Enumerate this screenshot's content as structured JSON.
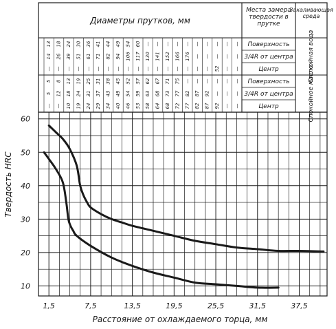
{
  "chart_data": {
    "type": "line",
    "title": "",
    "xlabel": "Расстояние от охлаждаемого торца, мм",
    "ylabel": "Твердость HRC",
    "xlim": [
      0,
      41.5
    ],
    "ylim": [
      7,
      62
    ],
    "x_ticks": [
      "1,5",
      "7,5",
      "13,5",
      "19,5",
      "25,5",
      "31,5",
      "37,5"
    ],
    "y_ticks": [
      "10",
      "20",
      "30",
      "40",
      "50",
      "60"
    ],
    "grid": true,
    "series": [
      {
        "x": [
          1.5,
          2.5,
          3.5,
          4.5,
          5.5,
          6.0,
          6.5,
          7.0,
          7.5,
          9,
          10.5,
          12,
          13.5,
          16.5,
          19.5,
          22.5,
          25.5,
          28.5,
          31.5,
          34.5,
          37.5,
          41
        ],
        "y": [
          58,
          56,
          54,
          51,
          46,
          40,
          37,
          35,
          33.5,
          31.5,
          30,
          29,
          28,
          26.5,
          25,
          23.5,
          22.5,
          21.5,
          21,
          20.5,
          20.5,
          20.3
        ]
      },
      {
        "x": [
          0.8,
          1.5,
          2.5,
          3.5,
          4.0,
          4.3,
          4.6,
          5.0,
          5.5,
          7.5,
          10.5,
          13.5,
          16.5,
          19.5,
          22.5,
          25.5,
          28.5,
          31.5,
          34.5
        ],
        "y": [
          50,
          48,
          45,
          41,
          35,
          30,
          28,
          26.5,
          25,
          22,
          18.5,
          16,
          14,
          12.5,
          11,
          10.5,
          10,
          9.5,
          9.5
        ]
      }
    ]
  },
  "header_table": {
    "diameters_title": "Диаметры прутков, мм",
    "location_title": "Места замера твердости в прутке",
    "medium_title": "Закаливающая среда",
    "water_block": {
      "medium": "Спокойная вода",
      "rows": [
        {
          "location": "Поверхность",
          "values": [
            "13",
            "18",
            "24",
            "30",
            "36",
            "41",
            "44",
            "49",
            "54",
            "60",
            "—",
            "—",
            "—",
            "—",
            "—",
            "—",
            "—",
            "—",
            "—",
            "—"
          ]
        },
        {
          "location": "3/4R от центра",
          "values": [
            "14",
            "26",
            "39",
            "51",
            "61",
            "71",
            "82",
            "94",
            "106",
            "117",
            "130",
            "141",
            "152",
            "166",
            "176",
            "—",
            "—",
            "—",
            "—",
            "—"
          ]
        },
        {
          "location": "Центр",
          "values": [
            "—",
            "—",
            "—",
            "—",
            "—",
            "—",
            "—",
            "—",
            "—",
            "—",
            "—",
            "—",
            "—",
            "—",
            "—",
            "—",
            "—",
            "52",
            "—",
            "—"
          ]
        }
      ]
    },
    "oil_block": {
      "medium": "Спокойное масло",
      "rows": [
        {
          "location": "Поверхность",
          "values": [
            "5",
            "8",
            "13",
            "19",
            "25",
            "31",
            "38",
            "45",
            "52",
            "57",
            "62",
            "67",
            "71",
            "75",
            "—",
            "—",
            "—",
            "—",
            "—",
            "—"
          ]
        },
        {
          "location": "3/4R от центра",
          "values": [
            "5",
            "12",
            "18",
            "24",
            "31",
            "37",
            "43",
            "49",
            "54",
            "59",
            "63",
            "68",
            "73",
            "77",
            "82",
            "87",
            "92",
            "—",
            "—",
            "—"
          ]
        },
        {
          "location": "Центр",
          "values": [
            "—",
            "—",
            "10",
            "19",
            "24",
            "29",
            "34",
            "40",
            "46",
            "53",
            "58",
            "64",
            "68",
            "72",
            "77",
            "82",
            "87",
            "92",
            "—",
            "—"
          ]
        }
      ]
    }
  },
  "colors": {
    "ink": "#1a1a1a",
    "background": "#ffffff"
  }
}
